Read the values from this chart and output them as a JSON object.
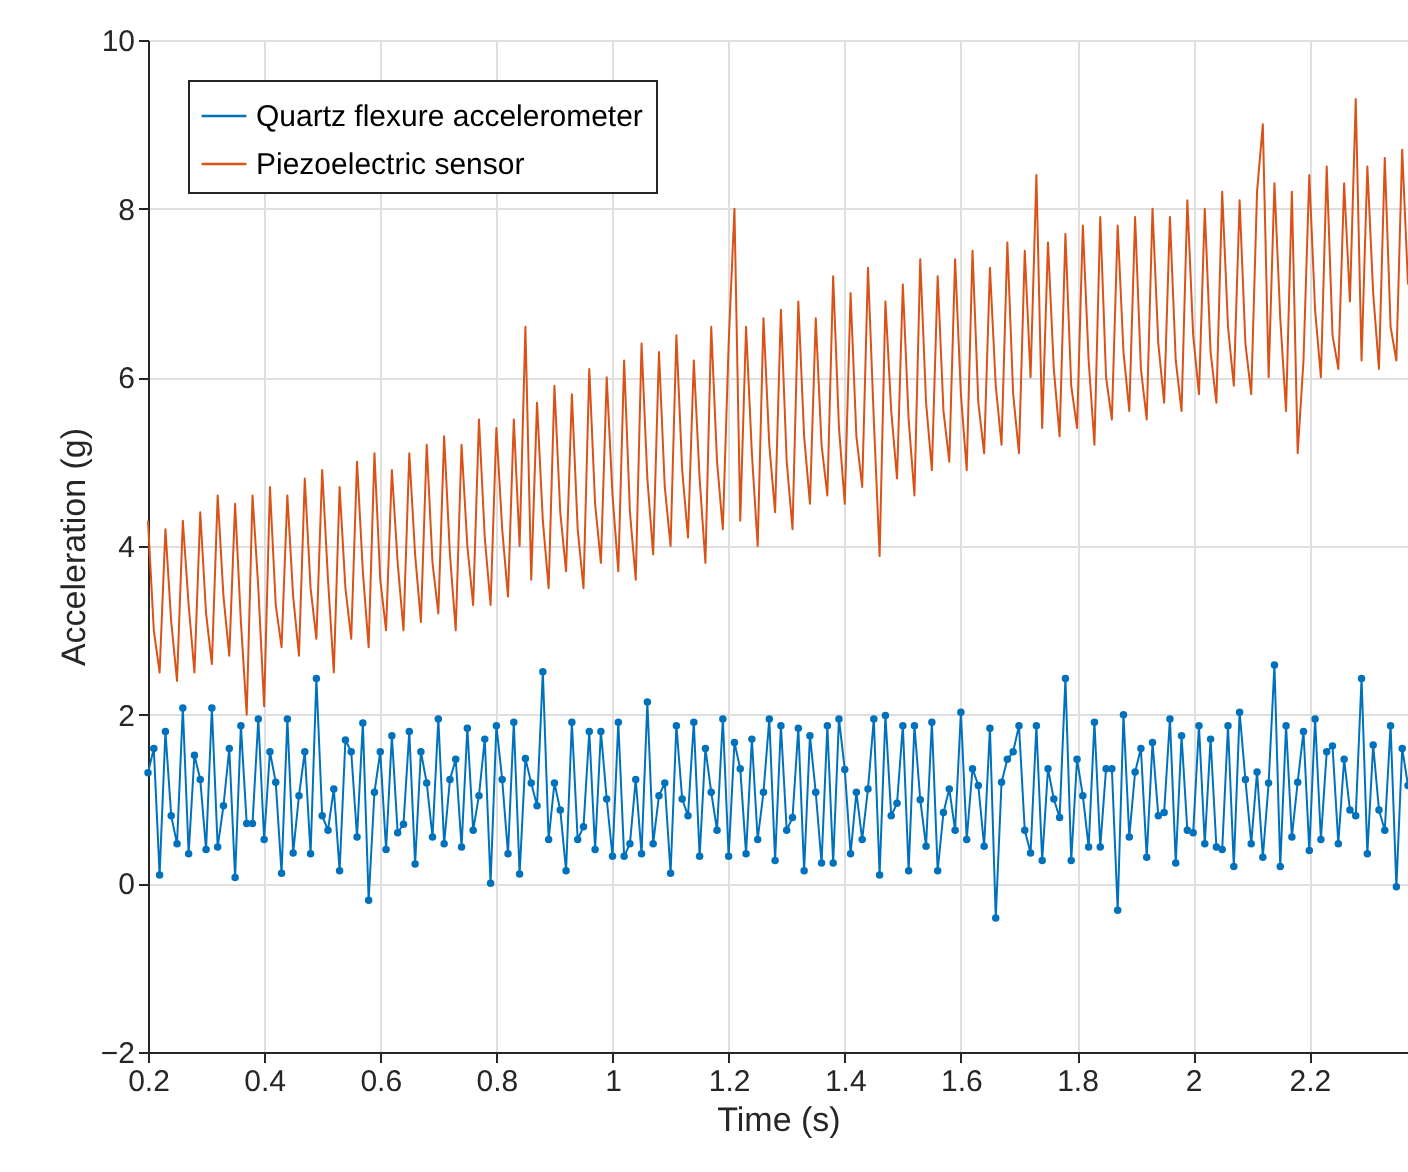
{
  "chart_data": {
    "type": "line",
    "xlabel": "Time (s)",
    "ylabel": "Acceleration (g)",
    "xlim": [
      0.2,
      2.37
    ],
    "xticks": [
      0.2,
      0.4,
      0.6,
      0.8,
      1,
      1.2,
      1.4,
      1.6,
      1.8,
      2,
      2.2
    ],
    "ylim": [
      -2,
      10
    ],
    "yticks": [
      -2,
      0,
      2,
      4,
      6,
      8,
      10
    ],
    "grid": true,
    "legend": "top left",
    "line_style": "solid",
    "x": [
      0.2,
      0.21,
      0.22,
      0.23,
      0.24,
      0.25,
      0.26,
      0.27,
      0.28,
      0.29,
      0.3,
      0.31,
      0.32,
      0.33,
      0.34,
      0.35,
      0.36,
      0.37,
      0.38,
      0.39,
      0.4,
      0.41,
      0.42,
      0.43,
      0.44,
      0.45,
      0.46,
      0.47,
      0.48,
      0.49,
      0.5,
      0.51,
      0.52,
      0.53,
      0.54,
      0.55,
      0.56,
      0.57,
      0.58,
      0.59,
      0.6,
      0.61,
      0.62,
      0.63,
      0.64,
      0.65,
      0.66,
      0.67,
      0.68,
      0.69,
      0.7,
      0.71,
      0.72,
      0.73,
      0.74,
      0.75,
      0.76,
      0.77,
      0.78,
      0.79,
      0.8,
      0.81,
      0.82,
      0.83,
      0.84,
      0.85,
      0.86,
      0.87,
      0.88,
      0.89,
      0.9,
      0.91,
      0.92,
      0.93,
      0.94,
      0.95,
      0.96,
      0.97,
      0.98,
      0.99,
      1.0,
      1.01,
      1.02,
      1.03,
      1.04,
      1.05,
      1.06,
      1.07,
      1.08,
      1.09,
      1.1,
      1.11,
      1.12,
      1.13,
      1.14,
      1.15,
      1.16,
      1.17,
      1.18,
      1.19,
      1.2,
      1.21,
      1.22,
      1.23,
      1.24,
      1.25,
      1.26,
      1.27,
      1.28,
      1.29,
      1.3,
      1.31,
      1.32,
      1.33,
      1.34,
      1.35,
      1.36,
      1.37,
      1.38,
      1.39,
      1.4,
      1.41,
      1.42,
      1.43,
      1.44,
      1.45,
      1.46,
      1.47,
      1.48,
      1.49,
      1.5,
      1.51,
      1.52,
      1.53,
      1.54,
      1.55,
      1.56,
      1.57,
      1.58,
      1.59,
      1.6,
      1.61,
      1.62,
      1.63,
      1.64,
      1.65,
      1.66,
      1.67,
      1.68,
      1.69,
      1.7,
      1.71,
      1.72,
      1.73,
      1.74,
      1.75,
      1.76,
      1.77,
      1.78,
      1.79,
      1.8,
      1.81,
      1.82,
      1.83,
      1.84,
      1.85,
      1.86,
      1.87,
      1.88,
      1.89,
      1.9,
      1.91,
      1.92,
      1.93,
      1.94,
      1.95,
      1.96,
      1.97,
      1.98,
      1.99,
      2.0,
      2.01,
      2.02,
      2.03,
      2.04,
      2.05,
      2.06,
      2.07,
      2.08,
      2.09,
      2.1,
      2.11,
      2.12,
      2.13,
      2.14,
      2.15,
      2.16,
      2.17,
      2.18,
      2.19,
      2.2,
      2.21,
      2.22,
      2.23,
      2.24,
      2.25,
      2.26,
      2.27,
      2.28,
      2.29,
      2.3,
      2.31,
      2.32,
      2.33,
      2.34,
      2.35,
      2.36,
      2.37
    ],
    "series": [
      {
        "name": "Quartz flexure accelerometer",
        "color": "#0072bd",
        "marker": "circle",
        "values": [
          1.31,
          1.6,
          0.1,
          1.8,
          0.8,
          0.47,
          2.08,
          0.35,
          1.52,
          1.23,
          0.4,
          2.08,
          0.43,
          0.92,
          1.6,
          0.07,
          1.87,
          0.71,
          0.71,
          1.95,
          0.52,
          1.56,
          1.2,
          0.12,
          1.95,
          0.36,
          1.04,
          1.56,
          0.35,
          2.43,
          0.8,
          0.63,
          1.12,
          0.15,
          1.7,
          1.56,
          0.55,
          1.9,
          -0.2,
          1.08,
          1.56,
          0.4,
          1.75,
          0.6,
          0.7,
          1.8,
          0.23,
          1.56,
          1.19,
          0.55,
          1.95,
          0.47,
          1.23,
          1.47,
          0.43,
          1.84,
          0.63,
          1.04,
          1.71,
          0.0,
          1.87,
          1.23,
          0.35,
          1.91,
          0.11,
          1.48,
          1.19,
          0.92,
          2.51,
          0.52,
          1.19,
          0.87,
          0.15,
          1.91,
          0.52,
          0.67,
          1.8,
          0.4,
          1.8,
          1.0,
          0.32,
          1.91,
          0.32,
          0.47,
          1.23,
          0.35,
          2.15,
          0.47,
          1.04,
          1.19,
          0.12,
          1.87,
          1.0,
          0.8,
          1.91,
          0.32,
          1.6,
          1.08,
          0.63,
          1.95,
          0.32,
          1.67,
          1.36,
          0.35,
          1.71,
          0.52,
          1.08,
          1.95,
          0.27,
          1.87,
          0.63,
          0.78,
          1.84,
          0.15,
          1.75,
          1.08,
          0.24,
          1.87,
          0.24,
          1.95,
          1.35,
          0.35,
          1.08,
          0.52,
          1.12,
          1.95,
          0.1,
          1.99,
          0.8,
          0.95,
          1.87,
          0.15,
          1.87,
          0.99,
          0.44,
          1.91,
          0.15,
          0.84,
          1.12,
          0.63,
          2.03,
          0.52,
          1.36,
          1.16,
          0.44,
          1.84,
          -0.41,
          1.2,
          1.47,
          1.56,
          1.87,
          0.63,
          0.36,
          1.87,
          0.27,
          1.36,
          1.0,
          0.78,
          2.43,
          0.27,
          1.47,
          1.04,
          0.43,
          1.91,
          0.43,
          1.36,
          1.36,
          -0.32,
          2.0,
          0.55,
          1.32,
          1.6,
          0.31,
          1.67,
          0.8,
          0.84,
          1.95,
          0.24,
          1.75,
          0.63,
          0.6,
          1.87,
          0.47,
          1.71,
          0.43,
          0.4,
          1.87,
          0.2,
          2.03,
          1.23,
          0.47,
          1.32,
          0.31,
          1.19,
          2.59,
          0.2,
          1.87,
          0.55,
          1.2,
          1.8,
          0.39,
          1.95,
          0.52,
          1.56,
          1.63,
          0.47,
          1.47,
          0.87,
          0.8,
          2.43,
          0.35,
          1.64,
          0.87,
          0.63,
          1.87,
          -0.04,
          1.6,
          1.16
        ]
      },
      {
        "name": "Piezoelectric sensor",
        "color": "#d95319",
        "marker": "none",
        "values": [
          4.3,
          3.0,
          2.5,
          4.2,
          3.1,
          2.4,
          4.3,
          3.3,
          2.5,
          4.4,
          3.2,
          2.6,
          4.6,
          3.4,
          2.7,
          4.5,
          3.1,
          2.0,
          4.6,
          3.5,
          2.1,
          4.7,
          3.3,
          2.8,
          4.6,
          3.4,
          2.7,
          4.8,
          3.5,
          2.9,
          4.9,
          3.6,
          2.5,
          4.7,
          3.5,
          2.9,
          5.0,
          3.7,
          2.8,
          5.1,
          3.6,
          3.0,
          4.9,
          3.8,
          3.0,
          5.1,
          3.9,
          3.1,
          5.2,
          3.8,
          3.2,
          5.3,
          3.9,
          3.0,
          5.2,
          4.0,
          3.3,
          5.5,
          4.1,
          3.3,
          5.4,
          4.2,
          3.4,
          5.5,
          4.0,
          6.6,
          3.6,
          5.7,
          4.3,
          3.5,
          5.9,
          4.4,
          3.7,
          5.8,
          4.2,
          3.5,
          6.1,
          4.5,
          3.8,
          6.0,
          4.6,
          3.7,
          6.2,
          4.4,
          3.6,
          6.4,
          4.8,
          3.9,
          6.3,
          4.7,
          4.0,
          6.5,
          4.9,
          4.1,
          6.2,
          4.8,
          3.8,
          6.6,
          5.0,
          4.2,
          6.4,
          8.0,
          4.3,
          6.6,
          5.1,
          4.0,
          6.7,
          5.2,
          4.4,
          6.8,
          5.0,
          4.2,
          6.9,
          5.3,
          4.5,
          6.7,
          5.2,
          4.6,
          7.2,
          5.4,
          4.5,
          7.0,
          5.3,
          4.7,
          7.3,
          5.5,
          3.88,
          6.9,
          5.6,
          4.8,
          7.1,
          5.5,
          4.6,
          7.4,
          5.7,
          4.9,
          7.2,
          5.6,
          5.0,
          7.4,
          5.8,
          4.9,
          7.5,
          5.7,
          5.1,
          7.3,
          5.9,
          5.2,
          7.6,
          5.8,
          5.1,
          7.5,
          6.0,
          8.4,
          5.4,
          7.6,
          6.1,
          5.3,
          7.7,
          5.9,
          5.4,
          7.8,
          6.2,
          5.2,
          7.9,
          6.0,
          5.5,
          7.8,
          6.3,
          5.6,
          7.9,
          6.1,
          5.5,
          8.0,
          6.4,
          5.7,
          7.9,
          6.2,
          5.6,
          8.1,
          6.5,
          5.8,
          8.0,
          6.3,
          5.7,
          8.2,
          6.6,
          5.9,
          8.1,
          6.4,
          5.8,
          8.2,
          9.0,
          6.0,
          8.3,
          6.7,
          5.6,
          8.2,
          5.1,
          6.2,
          8.4,
          6.8,
          6.0,
          8.5,
          6.5,
          6.1,
          8.3,
          6.9,
          9.3,
          6.2,
          8.5,
          7.0,
          6.1,
          8.6,
          6.6,
          6.2,
          8.7,
          7.1
        ]
      }
    ]
  }
}
